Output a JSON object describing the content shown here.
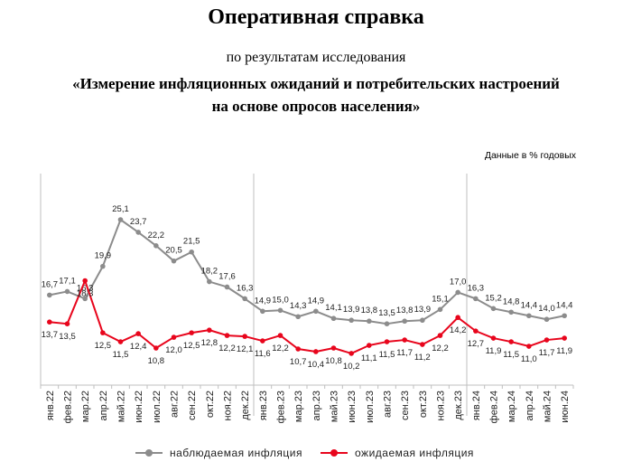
{
  "header": {
    "title": "Оперативная справка",
    "subtitle": "по результатам исследования",
    "study_line1": "«Измерение инфляционных ожиданий и потребительских настроений",
    "study_line2": "на основе опросов населения»",
    "units_note": "Данные в % годовых"
  },
  "chart_data": {
    "type": "line",
    "categories": [
      "янв.22",
      "фев.22",
      "мар.22",
      "апр.22",
      "май.22",
      "июн.22",
      "июл.22",
      "авг.22",
      "сен.22",
      "окт.22",
      "ноя.22",
      "дек.22",
      "янв.23",
      "фев.23",
      "мар.23",
      "апр.23",
      "май.23",
      "июн.23",
      "июл.23",
      "авг.23",
      "сен.23",
      "окт.23",
      "ноя.23",
      "дек.23",
      "янв.24",
      "фев.24",
      "мар.24",
      "апр.24",
      "май.24",
      "июн.24"
    ],
    "series": [
      {
        "name": "наблюдаемая инфляция",
        "color": "#8c8c8c",
        "values": [
          16.7,
          17.1,
          16.3,
          19.9,
          25.1,
          23.7,
          22.2,
          20.5,
          21.5,
          18.2,
          17.6,
          16.3,
          14.9,
          15.0,
          14.3,
          14.9,
          14.1,
          13.9,
          13.8,
          13.5,
          13.8,
          13.9,
          15.1,
          17.0,
          16.3,
          15.2,
          14.8,
          14.4,
          14.0,
          14.4
        ],
        "labels": [
          "16,7",
          "17,1",
          "16,3",
          "19,9",
          "25,1",
          "23,7",
          "22,2",
          "20,5",
          "21,5",
          "18,2",
          "17,6",
          "16,3",
          "14,9",
          "15,0",
          "14,3",
          "14,9",
          "14,1",
          "13,9",
          "13,8",
          "13,5",
          "13,8",
          "13,9",
          "15,1",
          "17,0",
          "16,3",
          "15,2",
          "14,8",
          "14,4",
          "14,0",
          "14,4"
        ]
      },
      {
        "name": "ожидаемая инфляция",
        "color": "#e8051c",
        "values": [
          13.7,
          13.5,
          18.3,
          12.5,
          11.5,
          12.4,
          10.8,
          12.0,
          12.5,
          12.8,
          12.2,
          12.1,
          11.6,
          12.2,
          10.7,
          10.4,
          10.8,
          10.2,
          11.1,
          11.5,
          11.7,
          11.2,
          12.2,
          14.2,
          12.7,
          11.9,
          11.5,
          11.0,
          11.7,
          11.9
        ],
        "labels": [
          "13,7",
          "13,5",
          "18,3",
          "12,5",
          "11,5",
          "12,4",
          "10,8",
          "12,0",
          "12,5",
          "12,8",
          "12,2",
          "12,1",
          "11,6",
          "12,2",
          "10,7",
          "10,4",
          "10,8",
          "10,2",
          "11,1",
          "11,5",
          "11,7",
          "11,2",
          "12,2",
          "14,2",
          "12,7",
          "11,9",
          "11,5",
          "11,0",
          "11,7",
          "11,9"
        ]
      }
    ],
    "year_separators_after": [
      "дек.22",
      "дек.23"
    ],
    "legend_position": "bottom",
    "grid": false
  }
}
